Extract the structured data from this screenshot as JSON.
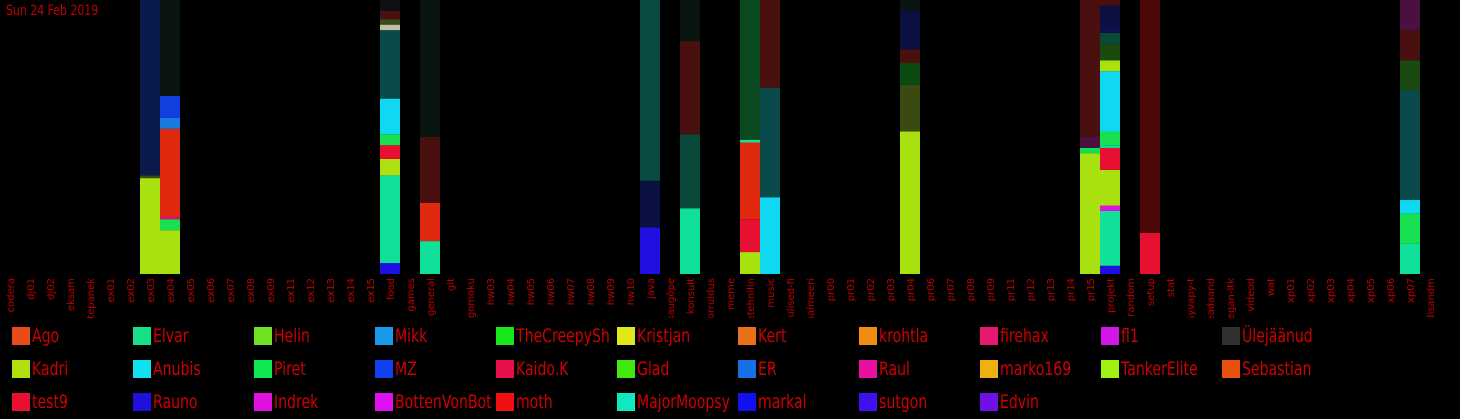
{
  "date_label": "Sun 24 Feb 2019",
  "chart_data": {
    "type": "bar",
    "stacked": true,
    "categories": [
      "codera",
      "dj01",
      "dj02",
      "eksam",
      "ettepanek",
      "ex01",
      "ex02",
      "ex03",
      "ex04",
      "ex05",
      "ex06",
      "ex07",
      "ex08",
      "ex09",
      "ex11",
      "ex12",
      "ex13",
      "ex14",
      "ex15",
      "food",
      "games",
      "general",
      "git",
      "gomoku",
      "hw03",
      "hw04",
      "hw05",
      "hw06",
      "hw07",
      "hw08",
      "hw09",
      "hw10",
      "java",
      "kaugõpe",
      "konsult",
      "korruldus",
      "meme",
      "mittetehnilin",
      "music",
      "olulised-fi",
      "palmeeri",
      "pr00",
      "pr01",
      "pr02",
      "pr03",
      "pr04",
      "pr06",
      "pr07",
      "pr08",
      "pr09",
      "pr11",
      "pr12",
      "pr13",
      "pr14",
      "pr15",
      "projekt",
      "random",
      "setup",
      "stat",
      "syvapy-t",
      "teadaand",
      "vegan-ltk",
      "videod",
      "wat",
      "xp01",
      "xp02",
      "xp03",
      "xp04",
      "xp05",
      "xp06",
      "xp07",
      "üldisandm"
    ],
    "legend": [
      {
        "name": "Ago",
        "color": "#e84c1a"
      },
      {
        "name": "Elvar",
        "color": "#18e08a"
      },
      {
        "name": "Helin",
        "color": "#70e020"
      },
      {
        "name": "Mikk",
        "color": "#1a9ae8"
      },
      {
        "name": "TheCreepySh",
        "color": "#18e818"
      },
      {
        "name": "Kristjan",
        "color": "#e0e818"
      },
      {
        "name": "Kert",
        "color": "#e87018"
      },
      {
        "name": "krohtla",
        "color": "#f08c10"
      },
      {
        "name": "firehax",
        "color": "#e81870"
      },
      {
        "name": "fl1",
        "color": "#d018e8"
      },
      {
        "name": "Ülejäänud",
        "color": "#303030"
      },
      {
        "name": "Kadri",
        "color": "#b0e010"
      },
      {
        "name": "Anubis",
        "color": "#10e0f0"
      },
      {
        "name": "Piret",
        "color": "#10e850"
      },
      {
        "name": "MZ",
        "color": "#1040f0"
      },
      {
        "name": "Kaido.K",
        "color": "#e8104a"
      },
      {
        "name": "Glad",
        "color": "#40e810"
      },
      {
        "name": "ER",
        "color": "#1870e8"
      },
      {
        "name": "Raul",
        "color": "#e810a0"
      },
      {
        "name": "marko169",
        "color": "#f0b010"
      },
      {
        "name": "TankerElite",
        "color": "#a0f010"
      },
      {
        "name": "Sebastian",
        "color": "#e85010"
      },
      {
        "name": "test9",
        "color": "#e81030"
      },
      {
        "name": "Rauno",
        "color": "#2010e0"
      },
      {
        "name": "Indrek",
        "color": "#e010e0"
      },
      {
        "name": "BottenVonBot",
        "color": "#e010f0"
      },
      {
        "name": "moth",
        "color": "#f01010"
      },
      {
        "name": "MajorMoopsy",
        "color": "#10e8c0"
      },
      {
        "name": "markal",
        "color": "#1010f0"
      },
      {
        "name": "sutgon",
        "color": "#4010f0"
      },
      {
        "name": "Edvin",
        "color": "#7010e8"
      }
    ],
    "stacks": {
      "ex03": [
        [
          0.35,
          "#a8e010"
        ],
        [
          0.01,
          "#3a4a10"
        ],
        [
          0.64,
          "#0a1a4a"
        ]
      ],
      "ex04": [
        [
          0.16,
          "#a8e010"
        ],
        [
          0.04,
          "#18e050"
        ],
        [
          0.01,
          "#e01070"
        ],
        [
          0.32,
          "#e02a10"
        ],
        [
          0.04,
          "#1a7ae0"
        ],
        [
          0.08,
          "#1040e0"
        ],
        [
          0.35,
          "#0a1410"
        ]
      ],
      "food": [
        [
          0.04,
          "#2010e0"
        ],
        [
          0.32,
          "#10e09a"
        ],
        [
          0.06,
          "#b0e010"
        ],
        [
          0.05,
          "#e81030"
        ],
        [
          0.04,
          "#18e050"
        ],
        [
          0.13,
          "#10d8f0"
        ],
        [
          0.25,
          "#0a4a4a"
        ],
        [
          0.02,
          "#c0c0a0"
        ],
        [
          0.02,
          "#3a4a1a"
        ],
        [
          0.03,
          "#4a1010"
        ],
        [
          0.04,
          "#101010"
        ]
      ],
      "general": [
        [
          0.12,
          "#10e09a"
        ],
        [
          0.14,
          "#e02a10"
        ],
        [
          0.24,
          "#4a1010"
        ],
        [
          0.5,
          "#0a1410"
        ]
      ],
      "java": [
        [
          0.17,
          "#2010e0"
        ],
        [
          0.17,
          "#0a1040"
        ],
        [
          0.66,
          "#0a4a40"
        ]
      ],
      "konsult": [
        [
          0.24,
          "#10e09a"
        ],
        [
          0.27,
          "#0a4a3a"
        ],
        [
          0.34,
          "#4a1010"
        ],
        [
          0.15,
          "#0a1410"
        ]
      ],
      "mittetehnilin": [
        [
          0.08,
          "#a8e010"
        ],
        [
          0.12,
          "#e81030"
        ],
        [
          0.28,
          "#e02a10"
        ],
        [
          0.01,
          "#10e09a"
        ],
        [
          0.51,
          "#0a4a20"
        ]
      ],
      "music": [
        [
          0.28,
          "#10d8f0"
        ],
        [
          0.4,
          "#0a4a4a"
        ],
        [
          0.32,
          "#4a1010"
        ]
      ],
      "pr04": [
        [
          0.52,
          "#a8e010"
        ],
        [
          0.17,
          "#3a4a10"
        ],
        [
          0.08,
          "#0a4a10"
        ],
        [
          0.05,
          "#4a1010"
        ],
        [
          0.14,
          "#0a1040"
        ],
        [
          0.04,
          "#0a1410"
        ]
      ],
      "pr15": [
        [
          0.44,
          "#a8e010"
        ],
        [
          0.02,
          "#10e050"
        ],
        [
          0.04,
          "#4a1040"
        ],
        [
          0.5,
          "#4a1010"
        ]
      ],
      "projekt": [
        [
          0.03,
          "#2010e0"
        ],
        [
          0.2,
          "#10e09a"
        ],
        [
          0.02,
          "#e010e0"
        ],
        [
          0.13,
          "#a8e010"
        ],
        [
          0.08,
          "#e81030"
        ],
        [
          0.01,
          "#10e09a"
        ],
        [
          0.05,
          "#18e050"
        ],
        [
          0.22,
          "#10d8f0"
        ],
        [
          0.04,
          "#a8e010"
        ],
        [
          0.06,
          "#1a4a10"
        ],
        [
          0.04,
          "#0a4a3a"
        ],
        [
          0.03,
          "#10104a"
        ],
        [
          0.07,
          "#0a1040"
        ],
        [
          0.02,
          "#4a1010"
        ]
      ],
      "setup": [
        [
          0.15,
          "#e81030"
        ],
        [
          0.85,
          "#4a0808"
        ]
      ],
      "xp07": [
        [
          0.11,
          "#10e09a"
        ],
        [
          0.11,
          "#18e050"
        ],
        [
          0.05,
          "#10d8f0"
        ],
        [
          0.4,
          "#0a4a4a"
        ],
        [
          0.11,
          "#1a4a10"
        ],
        [
          0.11,
          "#4a1010"
        ],
        [
          0.11,
          "#4a1040"
        ]
      ]
    }
  }
}
